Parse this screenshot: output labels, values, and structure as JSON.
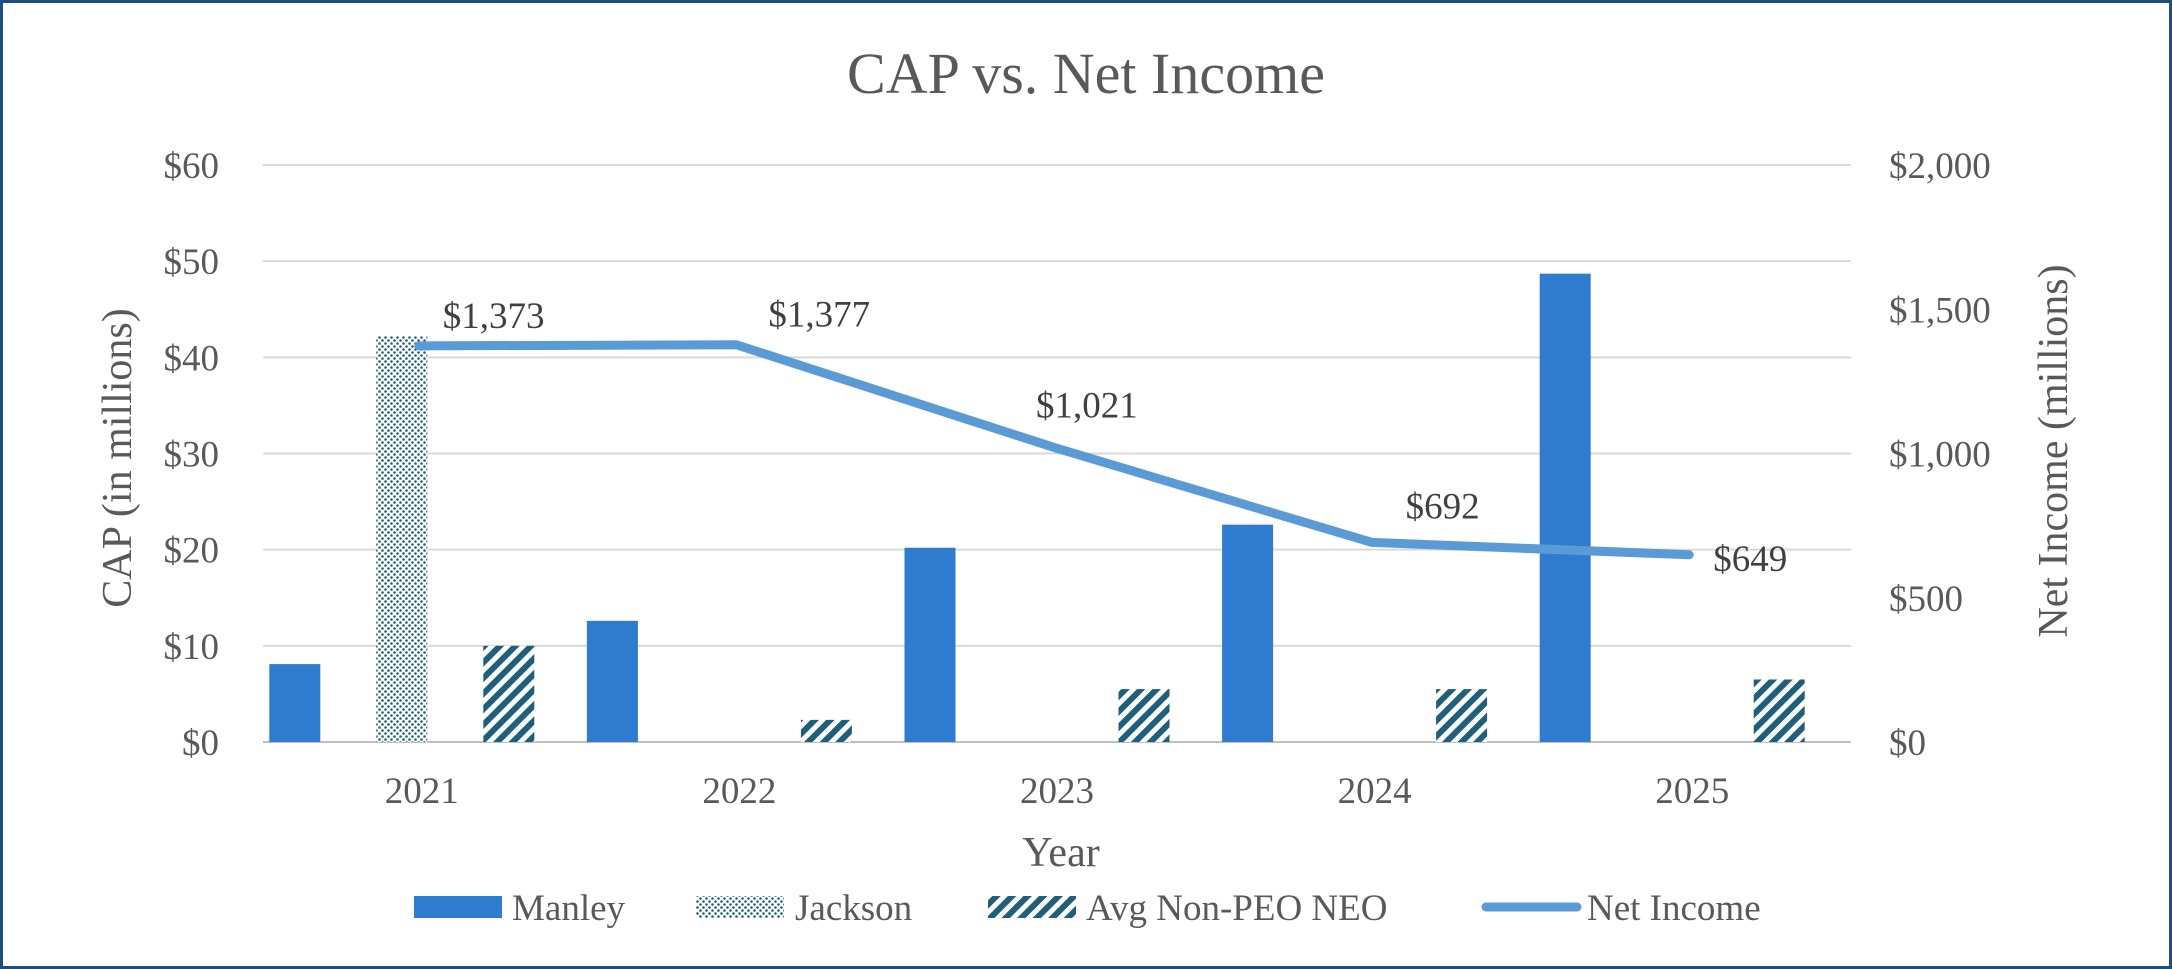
{
  "chart_data": {
    "type": "bar",
    "title": "CAP vs. Net Income",
    "xlabel": "Year",
    "ylabel": "CAP (in millions)",
    "y2label": "Net Income (millions)",
    "categories": [
      "2021",
      "2022",
      "2023",
      "2024",
      "2025"
    ],
    "ylim": [
      0,
      60
    ],
    "y_ticks": [
      0,
      10,
      20,
      30,
      40,
      50,
      60
    ],
    "y_tick_labels": [
      "$0",
      "$10",
      "$20",
      "$30",
      "$40",
      "$50",
      "$60"
    ],
    "y2lim": [
      0,
      2000
    ],
    "y2_ticks": [
      0,
      500,
      1000,
      1500,
      2000
    ],
    "y2_tick_labels": [
      "$0",
      "$500",
      "$1,000",
      "$1,500",
      "$2,000"
    ],
    "grid": true,
    "legend_position": "bottom",
    "series": [
      {
        "name": "Manley",
        "kind": "bar",
        "pattern": "solid",
        "color": "#2e7bcf",
        "values": [
          8.1,
          12.6,
          20.2,
          22.6,
          48.7
        ]
      },
      {
        "name": "Jackson",
        "kind": "bar",
        "pattern": "dots",
        "color": "#1f5f7a",
        "values": [
          42.2,
          null,
          null,
          null,
          null
        ]
      },
      {
        "name": "Avg Non-PEO NEO",
        "kind": "bar",
        "pattern": "stripes",
        "color": "#1f5f7a",
        "values": [
          10.0,
          2.3,
          5.5,
          5.5,
          6.5
        ]
      },
      {
        "name": "Net Income",
        "kind": "line",
        "axis": "secondary",
        "color": "#5b9bd5",
        "values": [
          1373,
          1377,
          1021,
          692,
          649
        ],
        "labels": [
          "$1,373",
          "$1,377",
          "$1,021",
          "$692",
          "$649"
        ]
      }
    ]
  }
}
